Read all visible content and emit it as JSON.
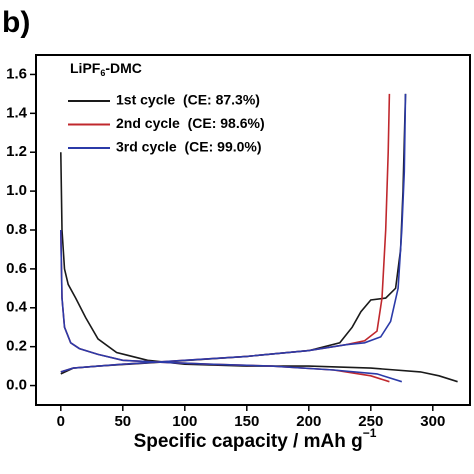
{
  "chart_data": {
    "type": "line",
    "panel_label": "b)",
    "legend_title": {
      "text": "LiPF",
      "subscript": "6",
      "suffix": "-DMC"
    },
    "xlabel": "Specific capacity / mAh g",
    "xlabel_superscript": "−1",
    "xlim": [
      -20,
      330
    ],
    "xticks": [
      0,
      50,
      100,
      150,
      200,
      250,
      300
    ],
    "ylim": [
      -0.1,
      1.7
    ],
    "yticks": [
      {
        "value": 0,
        "label": "0.0"
      },
      0.2,
      0.4,
      0.6,
      0.8,
      {
        "value": 1,
        "label": "1.0"
      },
      1.2,
      1.4,
      1.6
    ],
    "legend": "upper left",
    "series": [
      {
        "name": "1st cycle  (CE: 87.3%)",
        "color": "#1a1a1a",
        "x": [
          0,
          1,
          3,
          6,
          12,
          20,
          30,
          45,
          70,
          100,
          150,
          200,
          250,
          290,
          305,
          320,
          null,
          0,
          10,
          30,
          80,
          150,
          200,
          225,
          235,
          242,
          250,
          262,
          270,
          274,
          276,
          278
        ],
        "values": [
          1.2,
          0.8,
          0.6,
          0.52,
          0.45,
          0.35,
          0.24,
          0.17,
          0.13,
          0.11,
          0.1,
          0.1,
          0.09,
          0.07,
          0.05,
          0.02,
          null,
          0.06,
          0.09,
          0.1,
          0.12,
          0.15,
          0.18,
          0.22,
          0.3,
          0.38,
          0.44,
          0.45,
          0.5,
          0.7,
          1.0,
          1.5
        ]
      },
      {
        "name": "2nd cycle  (CE: 98.6%)",
        "color": "#c0282d",
        "x": [
          0,
          1,
          3,
          8,
          15,
          30,
          50,
          80,
          120,
          170,
          220,
          250,
          265,
          null,
          0,
          10,
          50,
          100,
          150,
          200,
          230,
          245,
          255,
          259,
          262,
          264,
          265
        ],
        "values": [
          0.8,
          0.45,
          0.3,
          0.22,
          0.19,
          0.16,
          0.13,
          0.12,
          0.11,
          0.1,
          0.08,
          0.05,
          0.02,
          null,
          0.07,
          0.09,
          0.11,
          0.13,
          0.15,
          0.18,
          0.21,
          0.23,
          0.28,
          0.45,
          0.8,
          1.2,
          1.5
        ]
      },
      {
        "name": "3rd cycle  (CE: 99.0%)",
        "color": "#2b3aa8",
        "x": [
          0,
          1,
          3,
          8,
          15,
          30,
          50,
          80,
          120,
          170,
          220,
          255,
          275,
          null,
          0,
          10,
          50,
          100,
          150,
          200,
          230,
          245,
          258,
          266,
          272,
          275,
          277,
          278
        ],
        "values": [
          0.8,
          0.45,
          0.3,
          0.22,
          0.19,
          0.16,
          0.13,
          0.12,
          0.11,
          0.1,
          0.08,
          0.06,
          0.02,
          null,
          0.07,
          0.09,
          0.11,
          0.13,
          0.15,
          0.18,
          0.21,
          0.22,
          0.25,
          0.33,
          0.5,
          0.8,
          1.1,
          1.5
        ]
      }
    ]
  }
}
